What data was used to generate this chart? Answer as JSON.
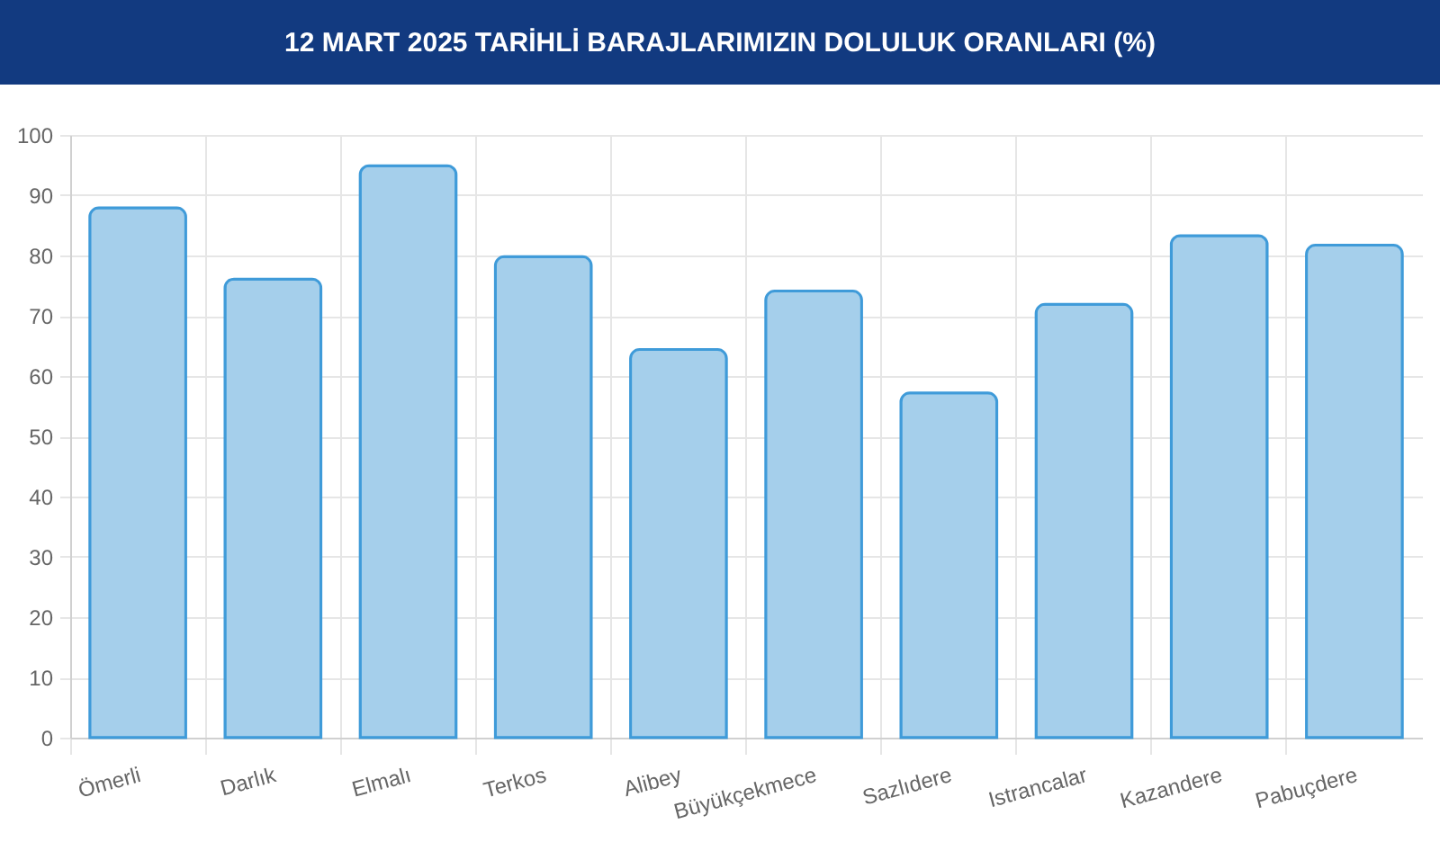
{
  "chart_data": {
    "type": "bar",
    "title": "12 MART 2025 TARİHLİ BARAJLARIMIZIN DOLULUK ORANLARI (%)",
    "categories": [
      "Ömerli",
      "Darlık",
      "Elmalı",
      "Terkos",
      "Alibey",
      "Büyükçekmece",
      "Sazlıdere",
      "Istrancalar",
      "Kazandere",
      "Pabuçdere"
    ],
    "values": [
      87.9,
      76.1,
      94.9,
      79.8,
      64.4,
      74.1,
      57.2,
      71.9,
      83.3,
      81.7
    ],
    "color": "#a5cfeb",
    "ylim": [
      0,
      100
    ],
    "yticks": [
      0,
      10,
      20,
      30,
      40,
      50,
      60,
      70,
      80,
      90,
      100
    ],
    "grid": true
  }
}
